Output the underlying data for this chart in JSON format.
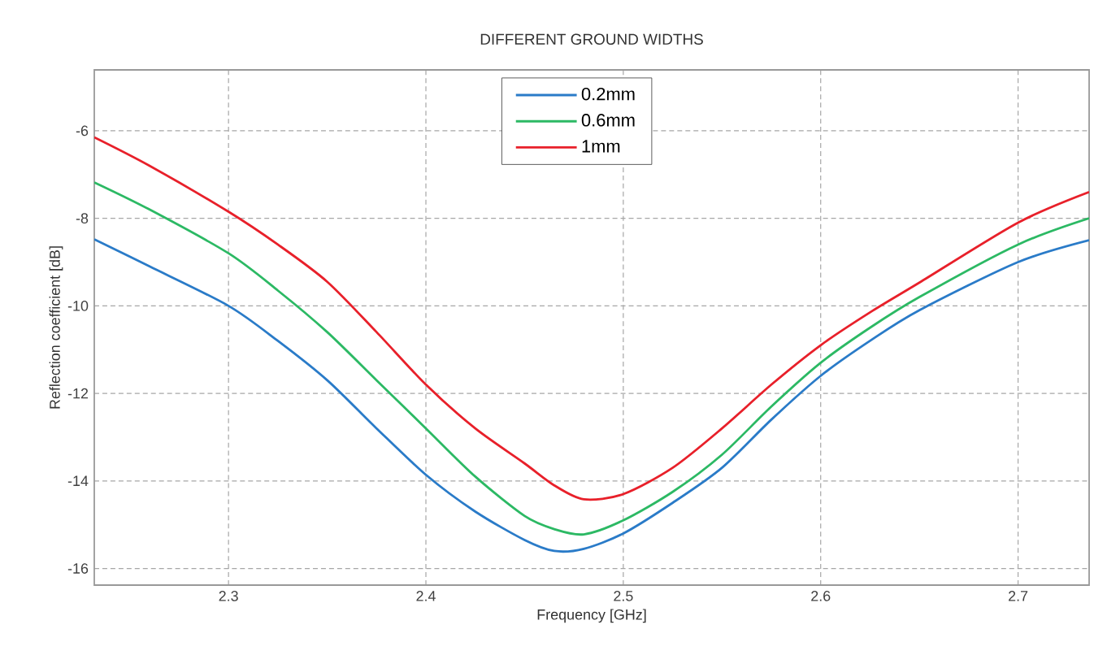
{
  "chart_data": {
    "type": "line",
    "title": "DIFFERENT GROUND WIDTHS",
    "xlabel": "Frequency [GHz]",
    "ylabel": "Reflection coefficient [dB]",
    "xlim": [
      2.232,
      2.736
    ],
    "ylim": [
      -16.38,
      -4.61
    ],
    "xticks": [
      2.3,
      2.4,
      2.5,
      2.6,
      2.7
    ],
    "yticks": [
      -16,
      -14,
      -12,
      -10,
      -8,
      -6
    ],
    "grid": true,
    "legend": "top",
    "line_style": "solid",
    "marker": "none",
    "x": [
      2.232,
      2.26,
      2.3,
      2.325,
      2.35,
      2.375,
      2.4,
      2.425,
      2.45,
      2.465,
      2.48,
      2.5,
      2.525,
      2.55,
      2.575,
      2.6,
      2.625,
      2.65,
      2.7,
      2.736
    ],
    "series": [
      {
        "name": "0.2mm",
        "color": "#2a7bc8",
        "values": [
          -8.48,
          -9.1,
          -10.0,
          -10.8,
          -11.7,
          -12.8,
          -13.86,
          -14.7,
          -15.35,
          -15.6,
          -15.55,
          -15.2,
          -14.5,
          -13.7,
          -12.6,
          -11.6,
          -10.8,
          -10.1,
          -9.0,
          -8.5
        ]
      },
      {
        "name": "0.6mm",
        "color": "#2cb964",
        "values": [
          -7.18,
          -7.8,
          -8.8,
          -9.65,
          -10.6,
          -11.7,
          -12.8,
          -13.9,
          -14.8,
          -15.1,
          -15.22,
          -14.9,
          -14.25,
          -13.4,
          -12.3,
          -11.3,
          -10.5,
          -9.8,
          -8.6,
          -8.0
        ]
      },
      {
        "name": "1mm",
        "color": "#e8202a",
        "values": [
          -6.15,
          -6.8,
          -7.85,
          -8.6,
          -9.45,
          -10.6,
          -11.8,
          -12.8,
          -13.6,
          -14.1,
          -14.42,
          -14.3,
          -13.7,
          -12.8,
          -11.8,
          -10.9,
          -10.15,
          -9.47,
          -8.1,
          -7.4
        ]
      }
    ]
  }
}
